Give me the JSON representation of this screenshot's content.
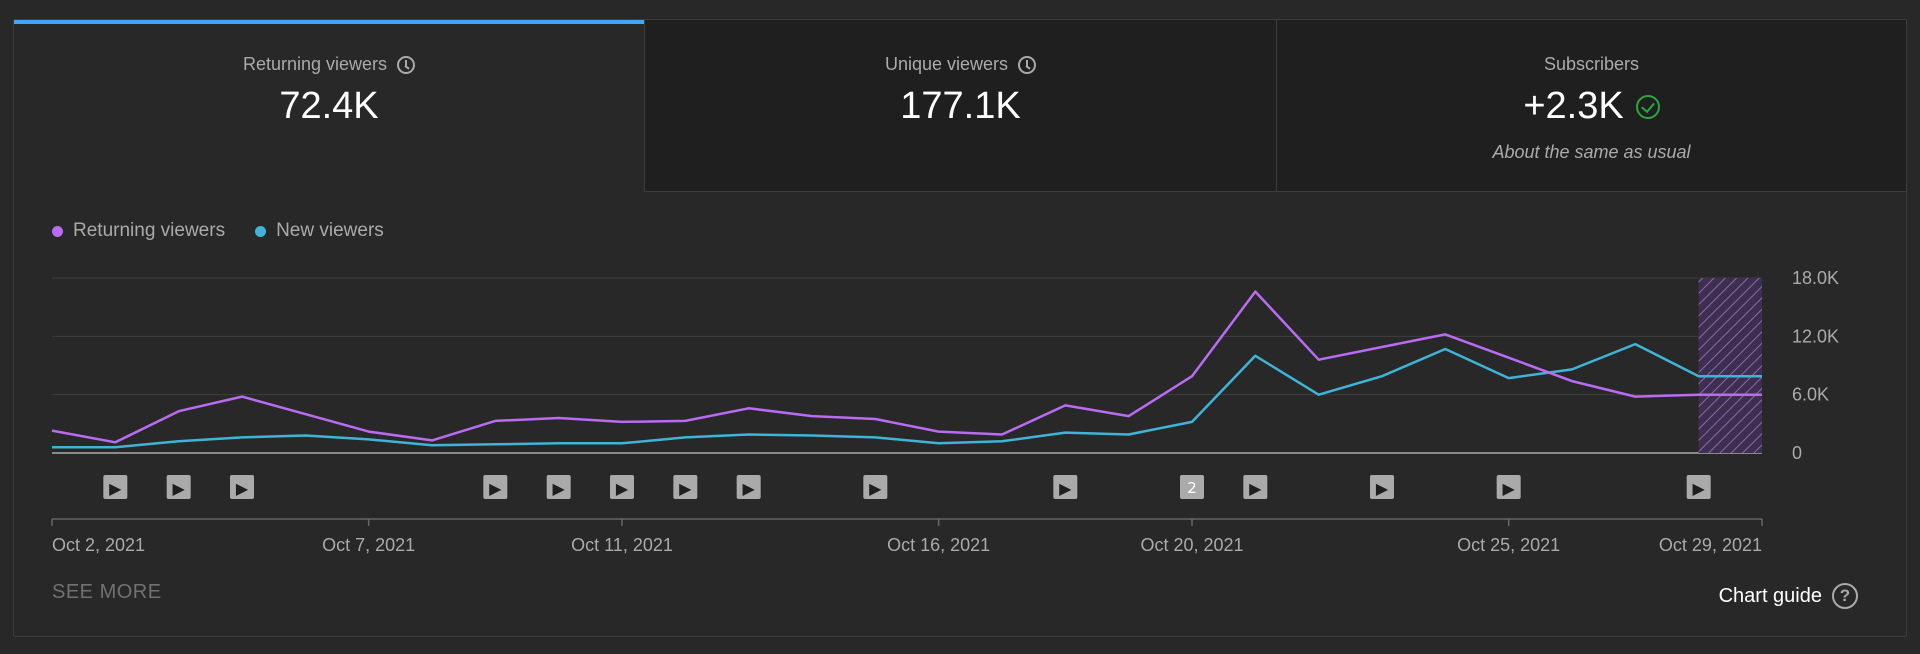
{
  "tabs": [
    {
      "title": "Returning viewers",
      "value": "72.4K",
      "active": true
    },
    {
      "title": "Unique viewers",
      "value": "177.1K",
      "active": false
    },
    {
      "title": "Subscribers",
      "value": "+2.3K",
      "note": "About the same as usual",
      "active": false
    }
  ],
  "legend": [
    {
      "name": "Returning viewers",
      "color": "#b96cf2"
    },
    {
      "name": "New viewers",
      "color": "#3fb4d8"
    }
  ],
  "colors": {
    "returning": "#b96cf2",
    "new": "#3fb4d8",
    "accent": "#3ea6ff",
    "check": "#2ba640"
  },
  "see_more": "SEE MORE",
  "chart_guide": "Chart guide",
  "chart_guide_icon": "?",
  "chart_data": {
    "type": "line",
    "x": [
      "Oct 2",
      "Oct 3",
      "Oct 4",
      "Oct 5",
      "Oct 6",
      "Oct 7",
      "Oct 8",
      "Oct 9",
      "Oct 10",
      "Oct 11",
      "Oct 12",
      "Oct 13",
      "Oct 14",
      "Oct 15",
      "Oct 16",
      "Oct 17",
      "Oct 18",
      "Oct 19",
      "Oct 20",
      "Oct 21",
      "Oct 22",
      "Oct 23",
      "Oct 24",
      "Oct 25",
      "Oct 26",
      "Oct 27",
      "Oct 28",
      "Oct 29"
    ],
    "x_tick_labels": [
      "Oct 2, 2021",
      "Oct 7, 2021",
      "Oct 11, 2021",
      "Oct 16, 2021",
      "Oct 20, 2021",
      "Oct 25, 2021",
      "Oct 29, 2021"
    ],
    "x_tick_dates": [
      "Oct 2",
      "Oct 7",
      "Oct 11",
      "Oct 16",
      "Oct 20",
      "Oct 25",
      "Oct 29"
    ],
    "y_ticks": [
      0,
      6000,
      12000,
      18000
    ],
    "y_tick_labels": [
      "0",
      "6.0K",
      "12.0K",
      "18.0K"
    ],
    "ylim": [
      0,
      18000
    ],
    "series": [
      {
        "name": "Returning viewers",
        "values": [
          2300,
          1100,
          4300,
          5800,
          4000,
          2200,
          1300,
          3300,
          3600,
          3200,
          3300,
          4600,
          3800,
          3500,
          2200,
          1900,
          4900,
          3800,
          7900,
          16600,
          9600,
          10900,
          12200,
          9800,
          7400,
          5800,
          6000,
          6000
        ]
      },
      {
        "name": "New viewers",
        "values": [
          600,
          600,
          1200,
          1600,
          1800,
          1400,
          800,
          900,
          1000,
          1000,
          1600,
          1900,
          1800,
          1600,
          1000,
          1200,
          2100,
          1900,
          3200,
          10000,
          6000,
          7900,
          10700,
          7700,
          8600,
          11200,
          7900,
          7900
        ]
      }
    ],
    "partial_period": [
      "Oct 28",
      "Oct 29"
    ],
    "video_markers": [
      {
        "date": "Oct 3",
        "label": "▶"
      },
      {
        "date": "Oct 4",
        "label": "▶"
      },
      {
        "date": "Oct 5",
        "label": "▶"
      },
      {
        "date": "Oct 9",
        "label": "▶"
      },
      {
        "date": "Oct 10",
        "label": "▶"
      },
      {
        "date": "Oct 11",
        "label": "▶"
      },
      {
        "date": "Oct 12",
        "label": "▶"
      },
      {
        "date": "Oct 13",
        "label": "▶"
      },
      {
        "date": "Oct 15",
        "label": "▶"
      },
      {
        "date": "Oct 18",
        "label": "▶"
      },
      {
        "date": "Oct 20",
        "label": "2"
      },
      {
        "date": "Oct 21",
        "label": "▶"
      },
      {
        "date": "Oct 23",
        "label": "▶"
      },
      {
        "date": "Oct 25",
        "label": "▶"
      },
      {
        "date": "Oct 28",
        "label": "▶"
      }
    ],
    "grid": true
  }
}
